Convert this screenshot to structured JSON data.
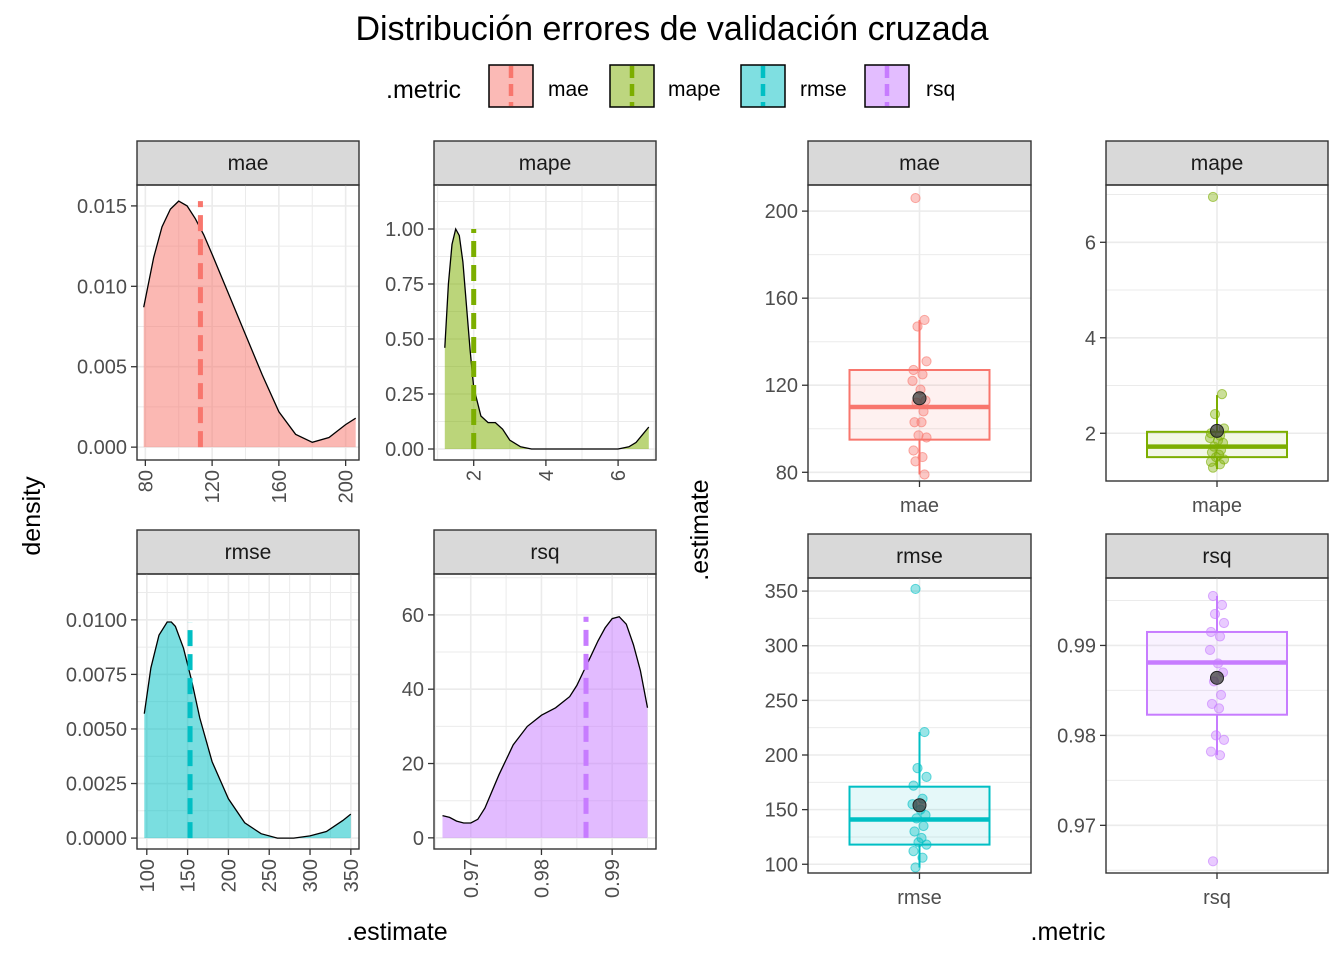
{
  "title": "Distribución errores de validación cruzada",
  "legend": {
    "title": ".metric",
    "position": "top",
    "items": [
      {
        "label": "mae",
        "color": "#F8766D"
      },
      {
        "label": "mape",
        "color": "#7CAE00"
      },
      {
        "label": "rmse",
        "color": "#00BFC4"
      },
      {
        "label": "rsq",
        "color": "#C77CFF"
      }
    ]
  },
  "left_panel": {
    "xlabel": ".estimate",
    "ylabel": "density"
  },
  "right_panel": {
    "xlabel": ".metric",
    "ylabel": ".estimate"
  },
  "chart_data": [
    {
      "type": "area",
      "facet": "mae",
      "color": "#F8766D",
      "xlim": [
        75,
        208
      ],
      "ylim": [
        -0.0008,
        0.0163
      ],
      "xticks": [
        80,
        120,
        160,
        200
      ],
      "yticks": [
        0,
        0.005,
        0.01,
        0.015
      ],
      "ytick_labels": [
        "0.000",
        "0.005",
        "0.010",
        "0.015"
      ],
      "mean": 113,
      "x": [
        79,
        85,
        90,
        95,
        100,
        105,
        110,
        115,
        120,
        130,
        140,
        150,
        160,
        170,
        180,
        190,
        200,
        206
      ],
      "y": [
        0.0087,
        0.0118,
        0.0137,
        0.0148,
        0.0153,
        0.015,
        0.0142,
        0.0132,
        0.012,
        0.0095,
        0.007,
        0.0045,
        0.0022,
        0.0008,
        0.0003,
        0.0006,
        0.0014,
        0.0018
      ]
    },
    {
      "type": "area",
      "facet": "mape",
      "color": "#7CAE00",
      "xlim": [
        0.9,
        7.05
      ],
      "ylim": [
        -0.05,
        1.2
      ],
      "xticks": [
        2,
        4,
        6
      ],
      "yticks": [
        0,
        0.25,
        0.5,
        0.75,
        1.0
      ],
      "ytick_labels": [
        "0.00",
        "0.25",
        "0.50",
        "0.75",
        "1.00"
      ],
      "mean": 2.0,
      "x": [
        1.2,
        1.3,
        1.4,
        1.5,
        1.6,
        1.7,
        1.8,
        1.9,
        2.0,
        2.2,
        2.4,
        2.6,
        2.8,
        3.0,
        3.3,
        3.6,
        4.0,
        5.0,
        6.0,
        6.3,
        6.5,
        6.7,
        6.85
      ],
      "y": [
        0.46,
        0.75,
        0.93,
        1.0,
        0.97,
        0.85,
        0.65,
        0.45,
        0.28,
        0.15,
        0.12,
        0.12,
        0.09,
        0.04,
        0.01,
        0.0,
        0.0,
        0.0,
        0.0,
        0.01,
        0.03,
        0.07,
        0.1
      ]
    },
    {
      "type": "area",
      "facet": "rmse",
      "color": "#00BFC4",
      "xlim": [
        88,
        360
      ],
      "ylim": [
        -0.0005,
        0.0121
      ],
      "xticks": [
        100,
        150,
        200,
        250,
        300,
        350
      ],
      "yticks": [
        0,
        0.0025,
        0.005,
        0.0075,
        0.01
      ],
      "ytick_labels": [
        "0.0000",
        "0.0025",
        "0.0050",
        "0.0075",
        "0.0100"
      ],
      "mean": 153,
      "x": [
        97,
        105,
        115,
        125,
        130,
        135,
        145,
        155,
        165,
        180,
        200,
        220,
        240,
        260,
        280,
        300,
        320,
        340,
        350
      ],
      "y": [
        0.0057,
        0.0078,
        0.0093,
        0.0099,
        0.0099,
        0.0097,
        0.0087,
        0.0072,
        0.0055,
        0.0035,
        0.0018,
        0.0007,
        0.0002,
        0.0,
        0.0,
        0.0001,
        0.0003,
        0.0008,
        0.0011
      ]
    },
    {
      "type": "area",
      "facet": "rsq",
      "color": "#C77CFF",
      "xlim": [
        0.9648,
        0.9962
      ],
      "ylim": [
        -3,
        71
      ],
      "xticks": [
        0.97,
        0.98,
        0.99
      ],
      "yticks": [
        0,
        20,
        40,
        60
      ],
      "ytick_labels": [
        "0",
        "20",
        "40",
        "60"
      ],
      "mean": 0.9863,
      "x": [
        0.966,
        0.967,
        0.968,
        0.969,
        0.97,
        0.971,
        0.972,
        0.974,
        0.976,
        0.978,
        0.98,
        0.982,
        0.984,
        0.985,
        0.986,
        0.987,
        0.988,
        0.989,
        0.99,
        0.991,
        0.992,
        0.993,
        0.994,
        0.995
      ],
      "y": [
        6,
        5.5,
        4.5,
        4,
        4,
        5,
        8,
        17,
        25,
        30,
        33,
        35,
        38,
        41,
        45,
        49,
        53,
        56.5,
        59,
        59.5,
        57.5,
        52,
        45,
        35
      ]
    },
    {
      "type": "boxplot",
      "facet": "mae",
      "category": "mae",
      "color": "#F8766D",
      "ylim": [
        76,
        212
      ],
      "yticks": [
        80,
        120,
        160,
        200
      ],
      "box": {
        "lower": 95,
        "q1": 95,
        "median": 110,
        "q3": 127,
        "whisker_low": 79,
        "whisker_high": 150
      },
      "mean": 114,
      "points": [
        206,
        150,
        147,
        131,
        127,
        125,
        122,
        118,
        113,
        112,
        108,
        103,
        103,
        97,
        96,
        90,
        87,
        85,
        79
      ]
    },
    {
      "type": "boxplot",
      "facet": "mape",
      "category": "mape",
      "color": "#7CAE00",
      "ylim": [
        1.0,
        7.2
      ],
      "yticks": [
        2,
        4,
        6
      ],
      "box": {
        "q1": 1.5,
        "median": 1.72,
        "q3": 2.03,
        "whisker_low": 1.25,
        "whisker_high": 2.8
      },
      "mean": 2.05,
      "points": [
        6.95,
        2.82,
        2.4,
        2.1,
        2.0,
        1.95,
        1.9,
        1.85,
        1.8,
        1.72,
        1.65,
        1.6,
        1.55,
        1.5,
        1.45,
        1.4,
        1.35,
        1.28
      ]
    },
    {
      "type": "boxplot",
      "facet": "rmse",
      "category": "rmse",
      "color": "#00BFC4",
      "ylim": [
        92,
        362
      ],
      "yticks": [
        100,
        150,
        200,
        250,
        300,
        350
      ],
      "box": {
        "q1": 118,
        "median": 141,
        "q3": 171,
        "whisker_low": 97,
        "whisker_high": 221
      },
      "mean": 154,
      "points": [
        352,
        221,
        188,
        180,
        172,
        160,
        155,
        150,
        145,
        142,
        135,
        130,
        124,
        120,
        118,
        112,
        106,
        97
      ]
    },
    {
      "type": "boxplot",
      "facet": "rsq",
      "category": "rsq",
      "color": "#C77CFF",
      "ylim": [
        0.9647,
        0.9975
      ],
      "yticks": [
        0.97,
        0.98,
        0.99
      ],
      "box": {
        "q1": 0.9823,
        "median": 0.9881,
        "q3": 0.9915,
        "whisker_low": 0.9778,
        "whisker_high": 0.9955
      },
      "mean": 0.9864,
      "points": [
        0.9955,
        0.9945,
        0.9935,
        0.9925,
        0.9915,
        0.991,
        0.9895,
        0.988,
        0.987,
        0.986,
        0.9845,
        0.9835,
        0.983,
        0.98,
        0.9795,
        0.9782,
        0.9778,
        0.966
      ]
    }
  ]
}
